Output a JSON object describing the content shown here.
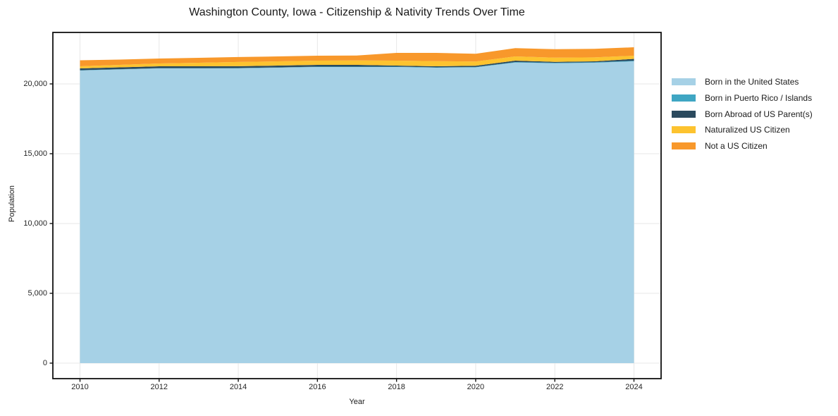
{
  "figure": {
    "background": "#ffffff",
    "text_color": "#1a1a1a",
    "grid_color": "#e7e7e7",
    "spine_color": "#111111"
  },
  "chart_data": {
    "type": "area",
    "stacked": true,
    "title": "Washington County, Iowa - Citizenship & Nativity Trends Over Time",
    "xlabel": "Year",
    "ylabel": "Population",
    "x": [
      2010,
      2011,
      2012,
      2013,
      2014,
      2015,
      2016,
      2017,
      2018,
      2019,
      2020,
      2021,
      2022,
      2023,
      2024
    ],
    "series": [
      {
        "name": "Born in the United States",
        "color": "#a6d1e6",
        "values": [
          20960,
          21035,
          21110,
          21110,
          21115,
          21160,
          21210,
          21210,
          21210,
          21160,
          21185,
          21530,
          21480,
          21515,
          21615
        ]
      },
      {
        "name": "Born in Puerto Rico / Islands",
        "color": "#3fa6c3",
        "values": [
          18,
          18,
          20,
          20,
          22,
          22,
          25,
          25,
          28,
          28,
          30,
          35,
          38,
          40,
          45
        ]
      },
      {
        "name": "Born Abroad of US Parent(s)",
        "color": "#2b4a5e",
        "values": [
          133,
          134,
          133,
          133,
          130,
          131,
          129,
          129,
          75,
          75,
          83,
          102,
          63,
          61,
          133
        ]
      },
      {
        "name": "Naturalized US Citizen",
        "color": "#fdc32f",
        "values": [
          152,
          177,
          202,
          252,
          303,
          303,
          303,
          318,
          354,
          368,
          303,
          303,
          298,
          283,
          227
        ]
      },
      {
        "name": "Not a US Citizen",
        "color": "#f8982b",
        "values": [
          429,
          378,
          353,
          354,
          353,
          354,
          353,
          353,
          555,
          591,
          556,
          591,
          611,
          611,
          606
        ]
      }
    ],
    "x_ticks": [
      2010,
      2012,
      2014,
      2016,
      2018,
      2020,
      2022,
      2024
    ],
    "x_tick_labels": [
      "2010",
      "2012",
      "2014",
      "2016",
      "2018",
      "2020",
      "2022",
      "2024"
    ],
    "y_ticks": [
      0,
      5000,
      10000,
      15000,
      20000
    ],
    "y_tick_labels": [
      "0",
      "5,000",
      "10,000",
      "15,000",
      "20,000"
    ],
    "xlim": [
      2009.314,
      2024.686
    ],
    "ylim": [
      -1111,
      23687
    ],
    "grid": true,
    "legend_position": "right"
  }
}
